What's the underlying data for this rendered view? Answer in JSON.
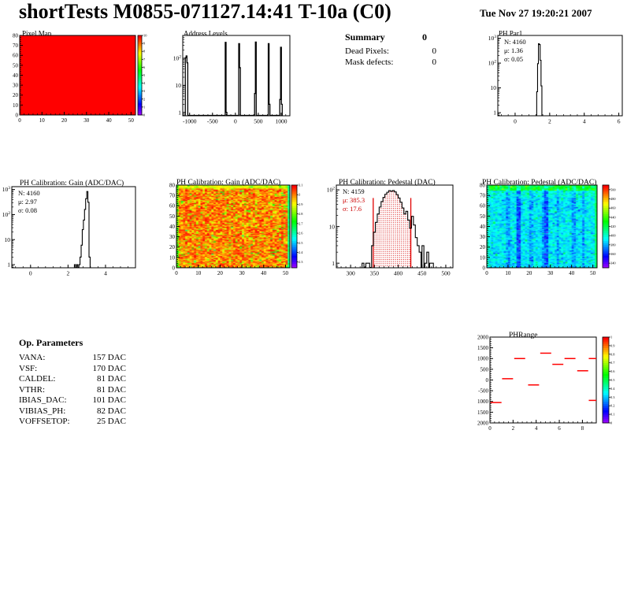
{
  "page": {
    "title": "shortTests M0855-071127.14:41 T-10a (C0)",
    "datetime": "Tue Nov 27 19:20:21 2007"
  },
  "summary": {
    "title": "Summary",
    "value": "0",
    "rows": [
      {
        "label": "Dead Pixels:",
        "value": "0"
      },
      {
        "label": "Mask defects:",
        "value": "0"
      }
    ]
  },
  "op_parameters": {
    "title": "Op. Parameters",
    "rows": [
      {
        "label": "VANA:",
        "value": "157 DAC"
      },
      {
        "label": "VSF:",
        "value": "170 DAC"
      },
      {
        "label": "CALDEL:",
        "value": "81 DAC"
      },
      {
        "label": "VTHR:",
        "value": "81 DAC"
      },
      {
        "label": "IBIAS_DAC:",
        "value": "101 DAC"
      },
      {
        "label": "VIBIAS_PH:",
        "value": "82 DAC"
      },
      {
        "label": "VOFFSETOP:",
        "value": "25 DAC"
      }
    ]
  },
  "chart_data": [
    {
      "id": "pixel_map",
      "type": "heatmap-uniform",
      "title": "Pixel Map",
      "xlim": [
        0,
        52
      ],
      "ylim": [
        0,
        80
      ],
      "x_ticks": [
        0,
        10,
        20,
        30,
        40,
        50
      ],
      "y_ticks": [
        0,
        10,
        20,
        30,
        40,
        50,
        60,
        70,
        80
      ],
      "zlim": [
        0,
        10
      ],
      "uniform_value": 10,
      "colorbar_ticks": [
        "0",
        "1",
        "2",
        "3",
        "4",
        "5",
        "6",
        "7",
        "8",
        "9",
        "10"
      ],
      "colorbar_values": [
        0,
        1,
        2,
        3,
        4,
        5,
        6,
        7,
        8,
        9,
        10
      ]
    },
    {
      "id": "address_levels",
      "type": "hist-log",
      "title": "Address Levels",
      "xlim": [
        -1150,
        1190
      ],
      "x_ticks": [
        -1000,
        -500,
        0,
        500,
        1000
      ],
      "x_minor": 100,
      "ylim": [
        0.75,
        700
      ],
      "y_labels": [
        "1",
        "10",
        "10^2"
      ],
      "bin_width": 18,
      "bins": [
        [
          -1085,
          105
        ],
        [
          -1067,
          122
        ],
        [
          -1049,
          68
        ],
        [
          -213,
          390
        ],
        [
          -195,
          1
        ],
        [
          82,
          350
        ],
        [
          100,
          45
        ],
        [
          428,
          5
        ],
        [
          446,
          400
        ],
        [
          727,
          350
        ],
        [
          745,
          2
        ],
        [
          978,
          3
        ],
        [
          996,
          255
        ],
        [
          1014,
          2
        ]
      ]
    },
    {
      "id": "ph_par1",
      "type": "hist-log",
      "title": "PH Par1",
      "stats": [
        {
          "text": "N: 4160",
          "color": "#000000"
        },
        {
          "text": "μ: 1.36",
          "color": "#000000"
        },
        {
          "text": "σ: 0.05",
          "color": "#000000"
        }
      ],
      "xlim": [
        -1,
        6.2
      ],
      "x_ticks": [
        0,
        2,
        4,
        6
      ],
      "x_minor": 0.4,
      "ylim": [
        0.75,
        1300
      ],
      "y_labels": [
        "1",
        "10",
        "10^2",
        "10^3"
      ],
      "bin_width": 0.05,
      "bins": [
        [
          1.275,
          7
        ],
        [
          1.325,
          95
        ],
        [
          1.375,
          600
        ],
        [
          1.425,
          560
        ],
        [
          1.475,
          130
        ],
        [
          1.525,
          12
        ]
      ]
    },
    {
      "id": "gain_hist",
      "type": "hist-log",
      "title": "PH Calibration: Gain (ADC/DAC)",
      "stats": [
        {
          "text": "N: 4160",
          "color": "#000000"
        },
        {
          "text": "μ: 2.97",
          "color": "#000000"
        },
        {
          "text": "σ: 0.08",
          "color": "#000000"
        }
      ],
      "xlim": [
        -1,
        5.6
      ],
      "x_ticks": [
        0,
        2,
        4
      ],
      "x_minor": 0.4,
      "ylim": [
        0.75,
        1300
      ],
      "y_labels": [
        "1",
        "10",
        "10^2",
        "10^3"
      ],
      "bin_width": 0.06,
      "bins": [
        [
          2.37,
          1
        ],
        [
          2.49,
          1
        ],
        [
          2.61,
          1
        ],
        [
          2.67,
          2
        ],
        [
          2.73,
          6
        ],
        [
          2.79,
          25
        ],
        [
          2.85,
          60
        ],
        [
          2.91,
          160
        ],
        [
          2.97,
          430
        ],
        [
          3.03,
          830
        ],
        [
          3.09,
          310
        ],
        [
          3.15,
          2
        ]
      ]
    },
    {
      "id": "gain_map",
      "type": "heatmap-noise",
      "title": "PH Calibration: Gain (ADC/DAC)",
      "xlim": [
        0,
        52
      ],
      "ylim": [
        0,
        80
      ],
      "cols": 52,
      "rows": 80,
      "x_ticks": [
        0,
        10,
        20,
        30,
        40,
        50
      ],
      "y_ticks": [
        0,
        10,
        20,
        30,
        40,
        50,
        60,
        70,
        80
      ],
      "zlim": [
        2.24,
        3.1
      ],
      "mean": 2.97,
      "sigma": 0.08,
      "seed": 7,
      "style": "gain",
      "colorbar_ticks": [
        "2.3",
        "2.4",
        "2.5",
        "2.6",
        "2.7",
        "2.8",
        "2.9",
        "3",
        "3.1"
      ],
      "colorbar_values": [
        2.3,
        2.4,
        2.5,
        2.6,
        2.7,
        2.8,
        2.9,
        3.0,
        3.1
      ]
    },
    {
      "id": "pedestal_hist",
      "type": "hist-log",
      "title": "PH Calibration: Pedestal (DAC)",
      "stats": [
        {
          "text": "N: 4159",
          "color": "#000000"
        },
        {
          "text": "μ: 385.3",
          "color": "#cc0000"
        },
        {
          "text": "σ: 17.6",
          "color": "#cc0000"
        }
      ],
      "xlim": [
        270,
        515
      ],
      "x_ticks": [
        300,
        350,
        400,
        450,
        500
      ],
      "x_minor": 10,
      "ylim": [
        0.75,
        135
      ],
      "y_labels": [
        "1",
        "10",
        "10^2"
      ],
      "bin_width": 4,
      "red_lines": [
        347.5,
        426.5
      ],
      "red_fill_range": [
        347.5,
        426.5
      ],
      "bins": [
        [
          326,
          1
        ],
        [
          334,
          1
        ],
        [
          338,
          1
        ],
        [
          346,
          3
        ],
        [
          350,
          7
        ],
        [
          354,
          13
        ],
        [
          358,
          22
        ],
        [
          362,
          34
        ],
        [
          366,
          48
        ],
        [
          370,
          62
        ],
        [
          374,
          76
        ],
        [
          378,
          86
        ],
        [
          382,
          95
        ],
        [
          386,
          91
        ],
        [
          390,
          96
        ],
        [
          394,
          88
        ],
        [
          398,
          74
        ],
        [
          402,
          60
        ],
        [
          406,
          46
        ],
        [
          410,
          32
        ],
        [
          414,
          22
        ],
        [
          418,
          26
        ],
        [
          422,
          15
        ],
        [
          426,
          9
        ],
        [
          430,
          19
        ],
        [
          434,
          11
        ],
        [
          438,
          5
        ],
        [
          442,
          3
        ],
        [
          446,
          2
        ],
        [
          452,
          3
        ],
        [
          458,
          1
        ],
        [
          462,
          2
        ],
        [
          468,
          1
        ],
        [
          472,
          1
        ]
      ]
    },
    {
      "id": "pedestal_map",
      "type": "heatmap-noise",
      "title": "PH Calibration: Pedestal (ADC/DAC)",
      "xlim": [
        0,
        52
      ],
      "ylim": [
        0,
        80
      ],
      "cols": 52,
      "rows": 80,
      "x_ticks": [
        0,
        10,
        20,
        30,
        40,
        50
      ],
      "y_ticks": [
        0,
        10,
        20,
        30,
        40,
        50,
        60,
        70,
        80
      ],
      "zlim": [
        330,
        510
      ],
      "mean": 385,
      "seed": 13,
      "style": "pedestal",
      "colorbar_ticks": [
        "340",
        "360",
        "380",
        "400",
        "420",
        "440",
        "460",
        "480",
        "500"
      ],
      "colorbar_values": [
        340,
        360,
        380,
        400,
        420,
        440,
        460,
        480,
        500
      ]
    },
    {
      "id": "ph_range",
      "type": "dash-plot",
      "title": "PHRange",
      "xlim": [
        0,
        9.2
      ],
      "x_ticks": [
        0,
        2,
        4,
        6,
        8
      ],
      "x_minor": 0.4,
      "ylim": [
        -2000,
        2000
      ],
      "y_tick_step": 500,
      "y_tick_labels_top_to_bottom": [
        "2000",
        "1500",
        "1000",
        "500",
        "0",
        "-500",
        "1000",
        "1500",
        "2000"
      ],
      "colorbar_ticks": [
        "0",
        "0.1",
        "0.2",
        "0.3",
        "0.4",
        "0.5",
        "0.6",
        "0.7",
        "0.8",
        "0.9",
        "1"
      ],
      "colorbar_values": [
        0,
        0.1,
        0.2,
        0.3,
        0.4,
        0.5,
        0.6,
        0.7,
        0.8,
        0.9,
        1
      ],
      "dash_color": "#ff0000",
      "dashes": [
        [
          0.05,
          1.0,
          -1050
        ],
        [
          1.05,
          2.0,
          60
        ],
        [
          2.1,
          3.05,
          1000
        ],
        [
          3.3,
          4.25,
          -230
        ],
        [
          4.35,
          5.3,
          1250
        ],
        [
          5.4,
          6.35,
          730
        ],
        [
          6.45,
          7.4,
          1000
        ],
        [
          7.55,
          8.5,
          430
        ],
        [
          8.55,
          9.2,
          1000
        ],
        [
          8.55,
          9.2,
          -950
        ]
      ]
    }
  ]
}
